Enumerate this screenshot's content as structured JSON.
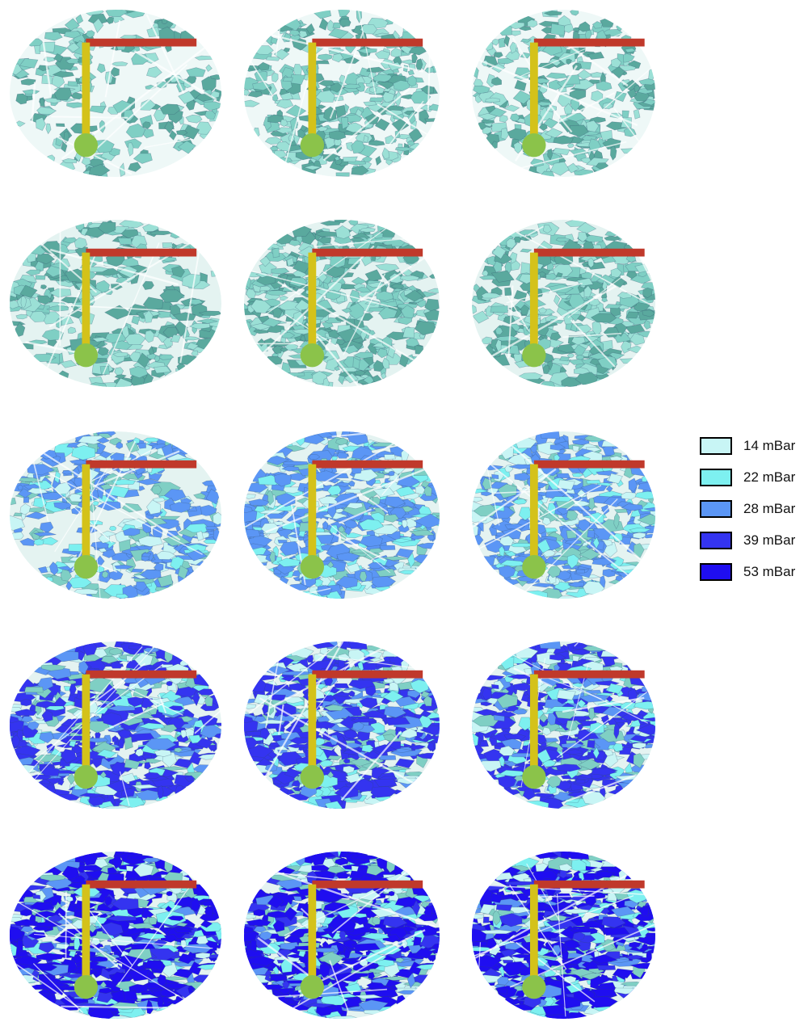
{
  "legend": {
    "items": [
      {
        "label": "14 mBar",
        "color": "#c8f5f5"
      },
      {
        "label": "22 mBar",
        "color": "#7df0f0"
      },
      {
        "label": "28 mBar",
        "color": "#5b96f5"
      },
      {
        "label": "39 mBar",
        "color": "#3434f0"
      },
      {
        "label": "53 mBar",
        "color": "#1f0ef0"
      }
    ]
  },
  "rows": [
    {
      "pressure_levels": [
        "14 mBar"
      ]
    },
    {
      "pressure_levels": [
        "14 mBar",
        "22 mBar"
      ]
    },
    {
      "pressure_levels": [
        "14 mBar",
        "22 mBar",
        "28 mBar"
      ]
    },
    {
      "pressure_levels": [
        "14 mBar",
        "22 mBar",
        "28 mBar",
        "39 mBar"
      ]
    },
    {
      "pressure_levels": [
        "14 mBar",
        "22 mBar",
        "28 mBar",
        "39 mBar",
        "53 mBar"
      ]
    }
  ],
  "columns": 3
}
